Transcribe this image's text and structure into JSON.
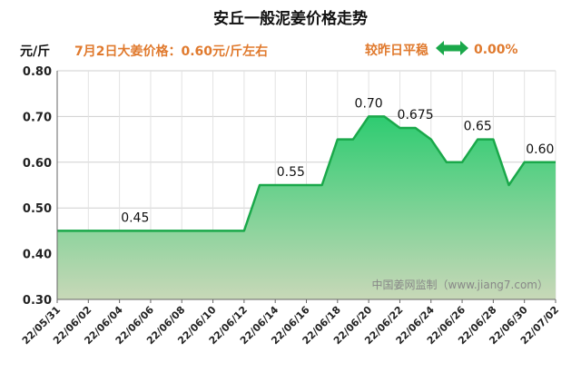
{
  "header": {
    "title": "安丘一般泥姜价格走势",
    "unit": "元/斤",
    "price_note": "7月2日大姜价格：0.60元/斤左右",
    "status_label": "较昨日平稳",
    "status_icon": "double-arrow-icon",
    "status_value": "0.00%",
    "accent_color": "#e07a2e",
    "arrow_color": "#1aa84a"
  },
  "watermark": "中国姜网监制（www.jiang7.com）",
  "chart_data": {
    "type": "area",
    "title": "安丘一般泥姜价格走势",
    "ylabel": "元/斤",
    "xlabel": "",
    "ylim": [
      0.3,
      0.8
    ],
    "yticks": [
      "0.30",
      "0.40",
      "0.50",
      "0.60",
      "0.70",
      "0.80"
    ],
    "xticks": [
      "22/05/31",
      "22/06/02",
      "22/06/04",
      "22/06/06",
      "22/06/08",
      "22/06/10",
      "22/06/12",
      "22/06/14",
      "22/06/16",
      "22/06/18",
      "22/06/20",
      "22/06/22",
      "22/06/24",
      "22/06/26",
      "22/06/28",
      "22/06/30",
      "22/07/02"
    ],
    "x": [
      "2022-05-31",
      "2022-06-01",
      "2022-06-02",
      "2022-06-03",
      "2022-06-04",
      "2022-06-05",
      "2022-06-06",
      "2022-06-07",
      "2022-06-08",
      "2022-06-09",
      "2022-06-10",
      "2022-06-11",
      "2022-06-12",
      "2022-06-13",
      "2022-06-14",
      "2022-06-15",
      "2022-06-16",
      "2022-06-17",
      "2022-06-18",
      "2022-06-19",
      "2022-06-20",
      "2022-06-21",
      "2022-06-22",
      "2022-06-23",
      "2022-06-24",
      "2022-06-25",
      "2022-06-26",
      "2022-06-27",
      "2022-06-28",
      "2022-06-29",
      "2022-06-30",
      "2022-07-01",
      "2022-07-02"
    ],
    "values": [
      0.45,
      0.45,
      0.45,
      0.45,
      0.45,
      0.45,
      0.45,
      0.45,
      0.45,
      0.45,
      0.45,
      0.45,
      0.45,
      0.55,
      0.55,
      0.55,
      0.55,
      0.55,
      0.65,
      0.65,
      0.7,
      0.7,
      0.675,
      0.675,
      0.65,
      0.6,
      0.6,
      0.65,
      0.65,
      0.55,
      0.6,
      0.6,
      0.6
    ],
    "data_labels": [
      {
        "index": 5,
        "text": "0.45"
      },
      {
        "index": 15,
        "text": "0.55"
      },
      {
        "index": 20,
        "text": "0.70"
      },
      {
        "index": 23,
        "text": "0.675"
      },
      {
        "index": 27,
        "text": "0.65"
      },
      {
        "index": 31,
        "text": "0.60"
      }
    ],
    "line_color": "#1aa84a",
    "fill_top_color": "#2ecc71",
    "fill_bottom_color": "#c8d8b8",
    "grid": true
  }
}
